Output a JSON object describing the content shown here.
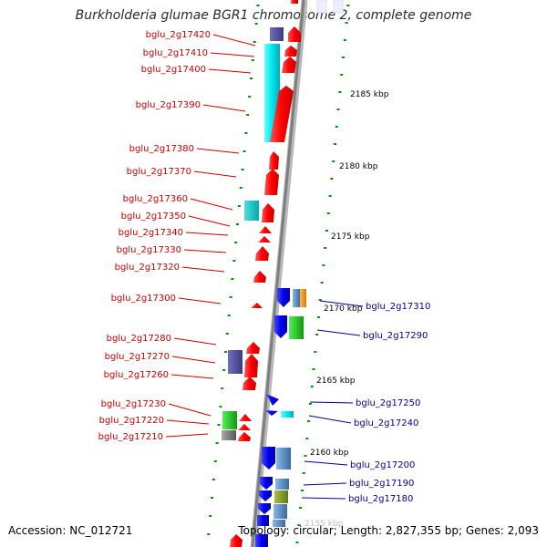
{
  "title": "Burkholderia glumae BGR1 chromosome 2, complete genome",
  "footer": {
    "accession": "Accession: NC_012721",
    "topology": "Topology: circular; Length: 2,827,355 bp; Genes: 2,093"
  },
  "colors": {
    "left_label": "#cc0000",
    "right_label": "#000099",
    "tick": "#009900",
    "backbone": "#888888",
    "forward_gene": "#ff0000",
    "reverse_gene": "#0000ee"
  },
  "scale_labels": [
    "2185 kbp",
    "2180 kbp",
    "2175 kbp",
    "2170 kbp",
    "2165 kbp",
    "2160 kbp",
    "2155 kbp"
  ],
  "left_genes": [
    "bglu_2g17420",
    "bglu_2g17410",
    "bglu_2g17400",
    "bglu_2g17390",
    "bglu_2g17380",
    "bglu_2g17370",
    "bglu_2g17360",
    "bglu_2g17350",
    "bglu_2g17340",
    "bglu_2g17330",
    "bglu_2g17320",
    "bglu_2g17300",
    "bglu_2g17280",
    "bglu_2g17270",
    "bglu_2g17260",
    "bglu_2g17230",
    "bglu_2g17220",
    "bglu_2g17210"
  ],
  "right_genes": [
    "bglu_2g17310",
    "bglu_2g17290",
    "bglu_2g17250",
    "bglu_2g17240",
    "bglu_2g17200",
    "bglu_2g17190",
    "bglu_2g17180"
  ]
}
